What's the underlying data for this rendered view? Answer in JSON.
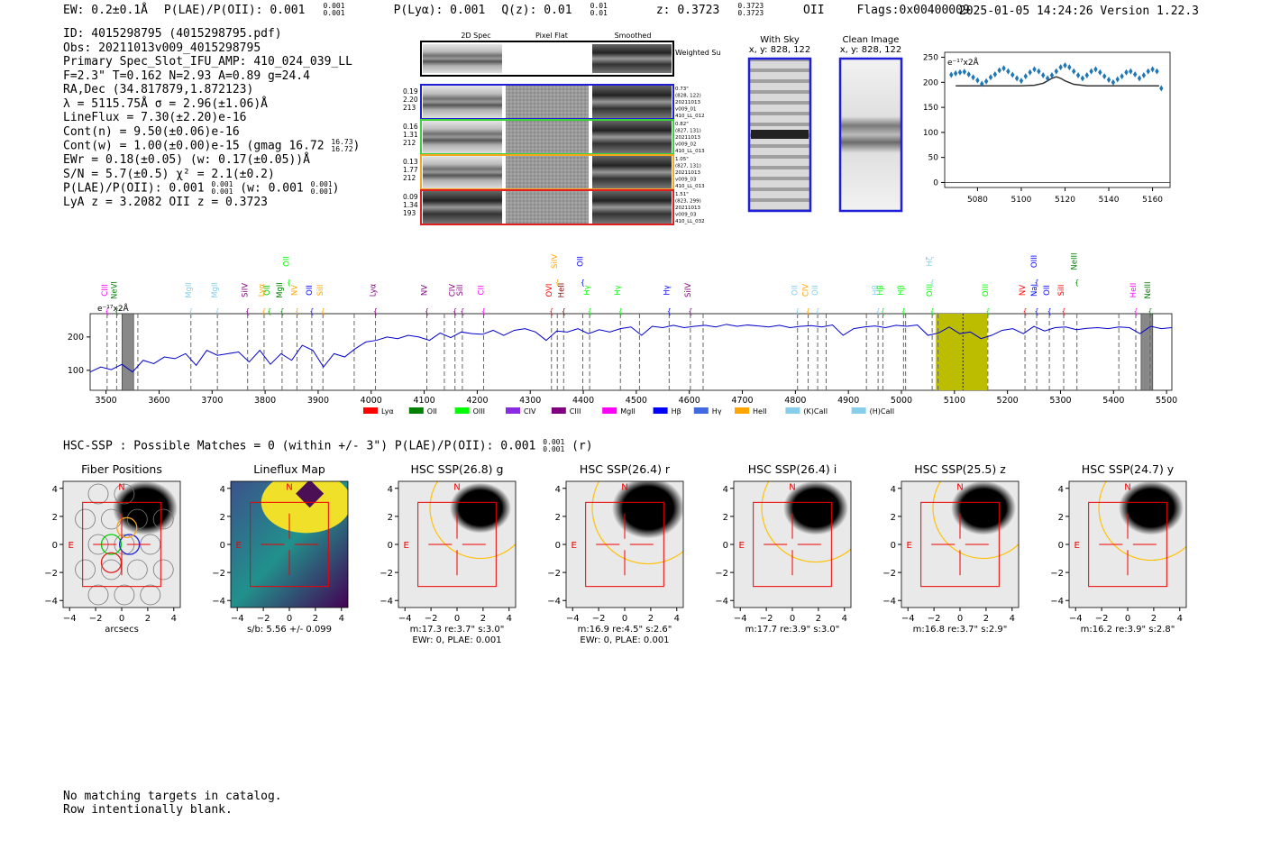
{
  "header": {
    "ew": "EW: 0.2±0.1Å",
    "plae": "P(LAE)/P(OII): 0.001",
    "plae_hi": "0.001",
    "plae_lo": "0.001",
    "plya": "P(Lyα): 0.001",
    "qz": "Q(z): 0.01",
    "qz_hi": "0.01",
    "qz_lo": "0.01",
    "z": "z: 0.3723",
    "z_hi": "0.3723",
    "z_lo": "0.3723",
    "z_line": "OII",
    "flags": "Flags:0x00400009",
    "timestamp": "2025-01-05 14:24:26  Version 1.22.3"
  },
  "info": {
    "id": "ID: 4015298795 (4015298795.pdf)",
    "obs": "Obs: 20211013v009_4015298795",
    "primary": "Primary Spec_Slot_IFU_AMP: 410_024_039_LL",
    "fit": "F=2.3\"  T=0.162  N=2.93  A=0.89  g=24.4",
    "radec": "RA,Dec (34.817879,1.872123)",
    "lambda": "λ = 5115.75Å  σ = 2.96(±1.06)Å",
    "lineflux": "LineFlux = 7.30(±2.20)e-16",
    "contn": "Cont(n) = 9.50(±0.06)e-16",
    "contw": "Cont(w) = 1.00(±0.00)e-15 (gmag 16.72",
    "gmag_hi": "16.73",
    "gmag_lo": "16.72",
    "ewr": "EWr = 0.18(±0.05) (w: 0.17(±0.05))Å",
    "sn": "S/N = 5.7(±0.5)  χ² = 2.1(±0.2)",
    "plae": "P(LAE)/P(OII): 0.001",
    "plae_hi": "0.001",
    "plae_lo": "0.001",
    "plae_w": "(w: 0.001",
    "plae_w_hi": "0.001",
    "plae_w_lo": "0.001",
    "lyaz": "LyA z = 3.2082  OII z = 0.3723"
  },
  "spec2d": {
    "col_headers": [
      "2D Spec",
      "Pixel Flat",
      "Smoothed"
    ],
    "weighted_sum": "Weighted Sum",
    "rows": [
      {
        "stats": [
          "0.19",
          "2.20",
          "213"
        ],
        "meta": [
          "0.73\"",
          "(828, 122)",
          "20211013",
          "v009_01",
          "410_LL_012"
        ],
        "color": "#1f1fd6"
      },
      {
        "stats": [
          "0.16",
          "1.31",
          "212"
        ],
        "meta": [
          "0.82\"",
          "(827, 131)",
          "20211013",
          "v009_02",
          "410_LL_013"
        ],
        "color": "#3ad13a"
      },
      {
        "stats": [
          "0.13",
          "1.77",
          "212"
        ],
        "meta": [
          "1.05\"",
          "(827, 131)",
          "20211013",
          "v009_03",
          "410_LL_013"
        ],
        "color": "#f5a623"
      },
      {
        "stats": [
          "0.09",
          "1.34",
          "193"
        ],
        "meta": [
          "1.51\"",
          "(823, 299)",
          "20211013",
          "v009_03",
          "410_LL_032"
        ],
        "color": "#e02020"
      }
    ]
  },
  "cutouts": {
    "sky_title": "With Sky",
    "sky_sub": "x, y: 828, 122",
    "clean_title": "Clean Image",
    "clean_sub": "x, y: 828, 122"
  },
  "chart_data": [
    {
      "type": "line",
      "id": "zoom",
      "title": "",
      "ylabel": "e⁻¹⁷x2Å",
      "xlim": [
        5065,
        5168
      ],
      "ylim": [
        -10,
        260
      ],
      "xticks": [
        5080,
        5100,
        5120,
        5140,
        5160
      ],
      "yticks": [
        0,
        50,
        100,
        150,
        200,
        250
      ],
      "series": [
        {
          "name": "data",
          "style": "diamond",
          "x": [
            5068,
            5070,
            5072,
            5074,
            5076,
            5078,
            5080,
            5082,
            5084,
            5086,
            5088,
            5090,
            5092,
            5094,
            5096,
            5098,
            5100,
            5102,
            5104,
            5106,
            5108,
            5110,
            5112,
            5114,
            5116,
            5118,
            5120,
            5122,
            5124,
            5126,
            5128,
            5130,
            5132,
            5134,
            5136,
            5138,
            5140,
            5142,
            5144,
            5146,
            5148,
            5150,
            5152,
            5154,
            5156,
            5158,
            5160,
            5162,
            5164
          ],
          "values": [
            215,
            218,
            220,
            221,
            216,
            210,
            204,
            197,
            202,
            210,
            216,
            224,
            228,
            222,
            215,
            208,
            203,
            212,
            220,
            226,
            222,
            214,
            208,
            214,
            222,
            230,
            234,
            230,
            222,
            214,
            208,
            214,
            222,
            226,
            220,
            212,
            205,
            200,
            206,
            212,
            220,
            222,
            216,
            208,
            214,
            222,
            226,
            222,
            188
          ]
        },
        {
          "name": "model",
          "style": "line",
          "x": [
            5070,
            5100,
            5106,
            5110,
            5112,
            5114,
            5116,
            5118,
            5120,
            5124,
            5130,
            5163
          ],
          "values": [
            193,
            193,
            194,
            198,
            203,
            208,
            211,
            208,
            203,
            196,
            193,
            193
          ]
        }
      ]
    },
    {
      "type": "line",
      "id": "full",
      "ylabel": "e⁻¹⁷x2Å",
      "xlim": [
        3470,
        5510
      ],
      "ylim": [
        40,
        270
      ],
      "xticks": [
        3500,
        3600,
        3700,
        3800,
        3900,
        4000,
        4100,
        4200,
        4300,
        4400,
        4500,
        4600,
        4700,
        4800,
        4900,
        5000,
        5100,
        5200,
        5300,
        5400,
        5500
      ],
      "yticks": [
        100,
        200
      ],
      "series": [
        {
          "name": "spectrum",
          "x": [
            3470,
            3490,
            3510,
            3530,
            3550,
            3570,
            3590,
            3610,
            3630,
            3650,
            3670,
            3690,
            3710,
            3730,
            3750,
            3770,
            3790,
            3810,
            3830,
            3850,
            3870,
            3890,
            3910,
            3930,
            3950,
            3970,
            3990,
            4010,
            4030,
            4050,
            4070,
            4090,
            4110,
            4130,
            4150,
            4170,
            4190,
            4210,
            4230,
            4250,
            4270,
            4290,
            4310,
            4330,
            4350,
            4370,
            4390,
            4410,
            4430,
            4450,
            4470,
            4490,
            4510,
            4530,
            4550,
            4570,
            4590,
            4610,
            4630,
            4650,
            4670,
            4690,
            4710,
            4730,
            4750,
            4770,
            4790,
            4810,
            4830,
            4850,
            4870,
            4890,
            4910,
            4930,
            4950,
            4970,
            4990,
            5010,
            5030,
            5050,
            5070,
            5090,
            5110,
            5130,
            5150,
            5170,
            5190,
            5210,
            5230,
            5250,
            5270,
            5290,
            5310,
            5330,
            5350,
            5370,
            5390,
            5410,
            5430,
            5450,
            5470,
            5490,
            5510
          ],
          "values": [
            95,
            110,
            102,
            118,
            95,
            130,
            120,
            140,
            135,
            150,
            115,
            160,
            145,
            150,
            155,
            125,
            160,
            118,
            150,
            130,
            175,
            160,
            110,
            150,
            140,
            165,
            185,
            190,
            200,
            195,
            205,
            200,
            190,
            212,
            198,
            215,
            210,
            208,
            220,
            205,
            220,
            225,
            215,
            190,
            218,
            215,
            225,
            210,
            222,
            215,
            225,
            230,
            205,
            232,
            228,
            235,
            228,
            232,
            235,
            230,
            238,
            232,
            236,
            233,
            230,
            235,
            228,
            232,
            234,
            230,
            236,
            205,
            225,
            230,
            233,
            228,
            235,
            232,
            236,
            205,
            212,
            230,
            210,
            215,
            195,
            205,
            220,
            225,
            210,
            232,
            218,
            228,
            230,
            222,
            226,
            228,
            225,
            230,
            228,
            210,
            232,
            225,
            228
          ]
        }
      ],
      "shaded": [
        {
          "from": 5065,
          "to": 5162,
          "color": "#bdbd00"
        }
      ],
      "hatched": [
        3530,
        5452
      ],
      "line_markers": [
        3502,
        3520,
        3560,
        3660,
        3710,
        3767,
        3798,
        3832,
        3860,
        3888,
        3909,
        3968,
        4008,
        4105,
        4138,
        4158,
        4172,
        4212,
        4340,
        4351,
        4363,
        4399,
        4412,
        4470,
        4506,
        4562,
        4602,
        4626,
        4804,
        4824,
        4842,
        4858,
        4934,
        4956,
        4965,
        5004,
        5008,
        5058,
        5069,
        5163,
        5233,
        5255,
        5279,
        5306,
        5331,
        5410,
        5442,
        5469
      ]
    }
  ],
  "spectrum_lines": [
    {
      "name": "CIII",
      "x": 3502,
      "color": "#ff00ff"
    },
    {
      "name": "NeVI",
      "x": 3520,
      "color": "#008000"
    },
    {
      "name": "MgII",
      "x": 3660,
      "color": "#87ceeb"
    },
    {
      "name": "MgII",
      "x": 3710,
      "color": "#87ceeb"
    },
    {
      "name": "SiIV",
      "x": 3767,
      "color": "#800080"
    },
    {
      "name": "Lyα",
      "x": 3798,
      "color": "#ffa500"
    },
    {
      "name": "OII",
      "x": 3808,
      "color": "#00c000"
    },
    {
      "name": "MgII",
      "x": 3832,
      "color": "#008000"
    },
    {
      "name": "NV",
      "x": 3860,
      "color": "#ffa500"
    },
    {
      "name": "OII",
      "x": 3845,
      "color": "#00ff00",
      "high": true
    },
    {
      "name": "OII",
      "x": 3888,
      "color": "#0000ff"
    },
    {
      "name": "SiII",
      "x": 3909,
      "color": "#ffa500"
    },
    {
      "name": "Lyα",
      "x": 4008,
      "color": "#800080"
    },
    {
      "name": "NV",
      "x": 4105,
      "color": "#800080"
    },
    {
      "name": "CIV",
      "x": 4158,
      "color": "#800080"
    },
    {
      "name": "SiII",
      "x": 4172,
      "color": "#800080"
    },
    {
      "name": "CII",
      "x": 4212,
      "color": "#ff00ff"
    },
    {
      "name": "OVI",
      "x": 4340,
      "color": "#ff0000"
    },
    {
      "name": "SiIV",
      "x": 4351,
      "color": "#ffa500",
      "high": true
    },
    {
      "name": "HeII",
      "x": 4363,
      "color": "#800000"
    },
    {
      "name": "OII",
      "x": 4399,
      "color": "#0000ff",
      "high": true
    },
    {
      "name": "Hγ",
      "x": 4412,
      "color": "#00ff00"
    },
    {
      "name": "Hγ",
      "x": 4470,
      "color": "#00ff00"
    },
    {
      "name": "Hγ",
      "x": 4562,
      "color": "#0000ff"
    },
    {
      "name": "SiIV",
      "x": 4602,
      "color": "#800080"
    },
    {
      "name": "OII",
      "x": 4804,
      "color": "#87ceeb"
    },
    {
      "name": "CIV",
      "x": 4824,
      "color": "#ffa500"
    },
    {
      "name": "OII",
      "x": 4842,
      "color": "#87ceeb"
    },
    {
      "name": "Hβ",
      "x": 4956,
      "color": "#87ceeb"
    },
    {
      "name": "Hβ",
      "x": 4965,
      "color": "#00ff00"
    },
    {
      "name": "Hβ",
      "x": 5004,
      "color": "#00ff00"
    },
    {
      "name": "OIII",
      "x": 5058,
      "color": "#00ff00"
    },
    {
      "name": "Hζ",
      "x": 5058,
      "color": "#87ceeb",
      "high": true
    },
    {
      "name": "OIII",
      "x": 5163,
      "color": "#00ff00"
    },
    {
      "name": "NV",
      "x": 5233,
      "color": "#ff0000"
    },
    {
      "name": "OIII",
      "x": 5255,
      "color": "#0000ff",
      "high": true
    },
    {
      "name": "NaI",
      "x": 5255,
      "color": "#0000ff"
    },
    {
      "name": "OII",
      "x": 5279,
      "color": "#0000ff"
    },
    {
      "name": "SiII",
      "x": 5306,
      "color": "#ff0000"
    },
    {
      "name": "NeIII",
      "x": 5331,
      "color": "#008000",
      "high": true
    },
    {
      "name": "HeII",
      "x": 5442,
      "color": "#ff00ff"
    },
    {
      "name": "NeIII",
      "x": 5469,
      "color": "#008000"
    }
  ],
  "legend": [
    {
      "label": "Lyα",
      "color": "#ff0000"
    },
    {
      "label": "OII",
      "color": "#008000"
    },
    {
      "label": "OIII",
      "color": "#00ff00"
    },
    {
      "label": "CIV",
      "color": "#8a2be2"
    },
    {
      "label": "CIII",
      "color": "#800080"
    },
    {
      "label": "MgII",
      "color": "#ff00ff"
    },
    {
      "label": "Hβ",
      "color": "#0000ff"
    },
    {
      "label": "Hγ",
      "color": "#4169e1"
    },
    {
      "label": "HeII",
      "color": "#ffa500"
    },
    {
      "label": "(K)CaII",
      "color": "#87ceeb"
    },
    {
      "label": "(H)CaII",
      "color": "#87ceeb"
    }
  ],
  "hsc": {
    "text": "HSC-SSP : Possible Matches = 0 (within +/- 3\")  P(LAE)/P(OII): 0.001",
    "hi": "0.001",
    "lo": "0.001",
    "band": "(r)"
  },
  "panels": [
    {
      "title": "Fiber Positions",
      "xlabel1": "arcsecs",
      "xlabel2": ""
    },
    {
      "title": "Lineflux Map",
      "xlabel1": "s/b: 5.56 +/- 0.099",
      "xlabel2": ""
    },
    {
      "title": "HSC SSP(26.8) g",
      "xlabel1": "m:17.3  re:3.7\"  s:3.0\"",
      "xlabel2": "EWr: 0, PLAE: 0.001"
    },
    {
      "title": "HSC SSP(26.4) r",
      "xlabel1": "m:16.9  re:4.5\"  s:2.6\"",
      "xlabel2": "EWr: 0, PLAE: 0.001"
    },
    {
      "title": "HSC SSP(26.4) i",
      "xlabel1": "m:17.7  re:3.9\"  s:3.0\"",
      "xlabel2": ""
    },
    {
      "title": "HSC SSP(25.5) z",
      "xlabel1": "m:16.8  re:3.7\"  s:2.9\"",
      "xlabel2": ""
    },
    {
      "title": "HSC SSP(24.7) y",
      "xlabel1": "m:16.2  re:3.9\"  s:2.8\"",
      "xlabel2": ""
    }
  ],
  "panel_axis": {
    "ticks": [
      "−4",
      "−2",
      "0",
      "2",
      "4"
    ],
    "ylim": [
      -4.5,
      4.5
    ],
    "north": "N",
    "east": "E"
  },
  "footer": {
    "line1": "No matching targets in catalog.",
    "line2": "Row intentionally blank."
  }
}
